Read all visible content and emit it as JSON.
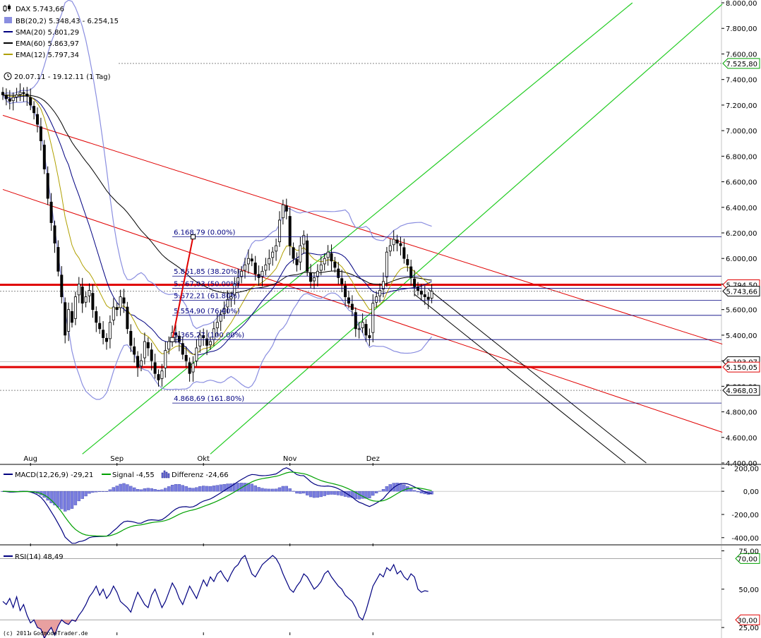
{
  "legend": {
    "ticker": "DAX 5.743,66",
    "bb": "BB(20,2) 5.348,43 - 6.254,15",
    "sma": "SMA(20) 5.801,29",
    "ema60": "EMA(60) 5.863,97",
    "ema12": "EMA(12) 5.797,34",
    "period": "20.07.11 - 19.12.11 (1 Tag)"
  },
  "colors": {
    "bb": "#8a8ee0",
    "sma": "#000080",
    "ema60": "#000000",
    "ema12": "#b0a000",
    "support_resistance": "#e00000",
    "channel": "#e00000",
    "trend_up": "#22cc22",
    "fib": "#000080",
    "macd": "#000080",
    "signal": "#00a000",
    "histogram": "#7a7ee0",
    "rsi": "#000080",
    "rsi_oversold_fill": "#e8a0a0"
  },
  "watermark": "(c) 2011 GodmodeTrader.de",
  "chart_data": [
    {
      "type": "candlestick",
      "ylim": [
        4400,
        8000
      ],
      "yticks": [
        "8.000,00",
        "7.800,00",
        "7.600,00",
        "7.400,00",
        "7.200,00",
        "7.000,00",
        "6.800,00",
        "6.600,00",
        "6.400,00",
        "6.200,00",
        "6.000,00",
        "5.800,00",
        "5.600,00",
        "5.400,00",
        "5.200,00",
        "5.000,00",
        "4.800,00",
        "4.600,00",
        "4.400,00"
      ],
      "ytick_values": [
        8000,
        7800,
        7600,
        7400,
        7200,
        7000,
        6800,
        6600,
        6400,
        6200,
        6000,
        5800,
        5600,
        5400,
        5200,
        5000,
        4800,
        4600,
        4400
      ],
      "xticks": [
        "Aug",
        "Sep",
        "Okt",
        "Nov",
        "Dez"
      ],
      "xtick_idx": [
        8,
        33,
        58,
        83,
        107
      ],
      "close": [
        7280,
        7250,
        7230,
        7260,
        7280,
        7300,
        7290,
        7270,
        7200,
        7140,
        7050,
        6920,
        6700,
        6470,
        6280,
        6120,
        5900,
        5700,
        5400,
        5600,
        5500,
        5700,
        5800,
        5650,
        5700,
        5750,
        5600,
        5500,
        5450,
        5380,
        5350,
        5500,
        5620,
        5600,
        5700,
        5650,
        5450,
        5320,
        5250,
        5150,
        5200,
        5350,
        5300,
        5200,
        5100,
        5050,
        5120,
        5280,
        5350,
        5420,
        5400,
        5350,
        5250,
        5200,
        5100,
        5180,
        5300,
        5400,
        5380,
        5320,
        5350,
        5450,
        5500,
        5560,
        5610,
        5680,
        5700,
        5800,
        5850,
        5900,
        5950,
        6000,
        5980,
        5880,
        5850,
        5900,
        5950,
        6000,
        6050,
        6100,
        6300,
        6420,
        6370,
        6100,
        6000,
        5950,
        6100,
        6180,
        5900,
        5820,
        5850,
        5900,
        5950,
        6000,
        6050,
        5980,
        5930,
        5850,
        5800,
        5700,
        5650,
        5600,
        5450,
        5450,
        5500,
        5400,
        5380,
        5650,
        5700,
        5750,
        5820,
        6050,
        6100,
        6150,
        6120,
        6100,
        6000,
        5950,
        5850,
        5780,
        5750,
        5720,
        5700,
        5680,
        5743
      ],
      "current": "5.743,66",
      "value_tags": [
        {
          "value": 7525.8,
          "label": "7.525,80"
        },
        {
          "value": 5794.5,
          "label": "5.794,50"
        },
        {
          "value": 5743.66,
          "label": "5.743,66"
        },
        {
          "value": 5193.07,
          "label": "5.193,07"
        },
        {
          "value": 5150.05,
          "label": "5.150,05"
        },
        {
          "value": 4968.03,
          "label": "4.968,03"
        }
      ],
      "horizontal_lines": [
        {
          "value": 5794.5,
          "label": "5.794,50"
        },
        {
          "value": 5150.05,
          "label": "5.150,05"
        }
      ],
      "fibonacci": [
        {
          "value": 6168.79,
          "label": "6.168,79 (0.00%)"
        },
        {
          "value": 5861.85,
          "label": "5.861,85 (38.20%)"
        },
        {
          "value": 5767.03,
          "label": "5.767,03 (50.00%)"
        },
        {
          "value": 5672.21,
          "label": "5.672,21 (61.80%)"
        },
        {
          "value": 5554.9,
          "label": "5.554,90 (76.40%)"
        },
        {
          "value": 5365.27,
          "label": "5.365,27 (100.00%)"
        },
        {
          "value": 4868.69,
          "label": "4.868,69 (161.80%)"
        }
      ]
    },
    {
      "type": "line",
      "title": "MACD(12,26,9) -29,21",
      "signal_label": "Signal -4,55",
      "diff_label": "Differenz -24,66",
      "ylim": [
        -450,
        220
      ],
      "yticks": [
        "200,00",
        "0,00",
        "-200,00",
        "-400,00"
      ],
      "ytick_values": [
        200,
        0,
        -200,
        -400
      ]
    },
    {
      "type": "line",
      "title": "RSI(14) 48,49",
      "ylim": [
        20,
        78
      ],
      "yticks": [
        "75,00",
        "50,00",
        "25,00"
      ],
      "ytick_values": [
        75,
        50,
        25
      ],
      "levels": [
        {
          "value": 70,
          "label": "70,00"
        },
        {
          "value": 30,
          "label": "30,00"
        }
      ],
      "values": [
        42,
        40,
        44,
        38,
        45,
        36,
        40,
        33,
        28,
        30,
        25,
        24,
        18,
        22,
        25,
        20,
        26,
        30,
        28,
        27,
        30,
        29,
        33,
        36,
        40,
        45,
        48,
        52,
        46,
        50,
        44,
        47,
        52,
        48,
        42,
        40,
        38,
        35,
        42,
        48,
        44,
        40,
        38,
        46,
        50,
        44,
        38,
        42,
        48,
        54,
        50,
        44,
        40,
        46,
        52,
        48,
        44,
        50,
        56,
        52,
        58,
        55,
        60,
        62,
        58,
        55,
        60,
        64,
        66,
        70,
        72,
        66,
        60,
        58,
        62,
        66,
        68,
        70,
        72,
        70,
        66,
        60,
        55,
        50,
        48,
        52,
        55,
        60,
        58,
        54,
        50,
        52,
        55,
        60,
        62,
        58,
        55,
        52,
        50,
        46,
        44,
        42,
        38,
        32,
        30,
        36,
        44,
        52,
        56,
        60,
        58,
        64,
        62,
        66,
        60,
        62,
        58,
        56,
        60,
        58,
        50,
        48,
        49,
        48.49
      ]
    }
  ]
}
